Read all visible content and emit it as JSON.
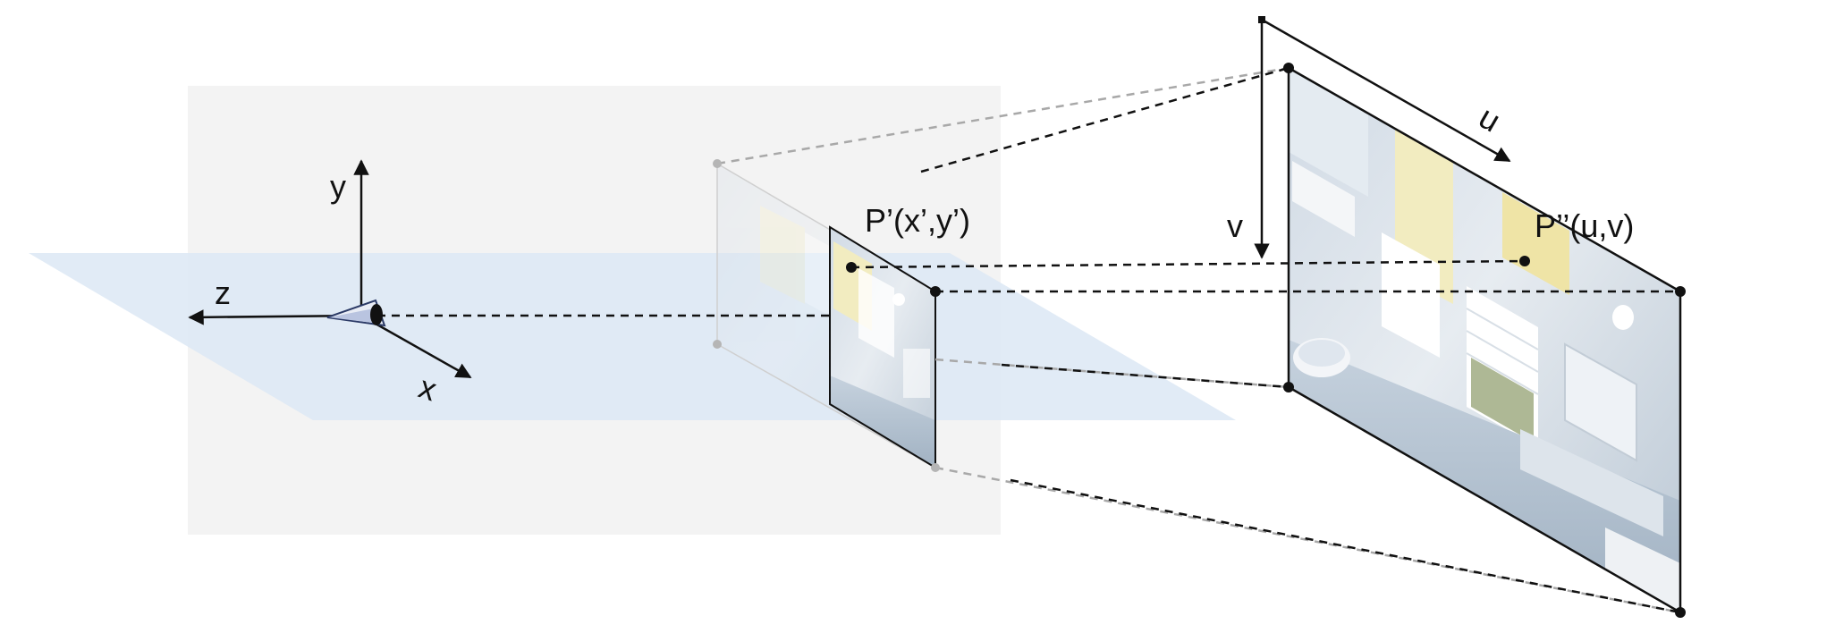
{
  "labels": {
    "axis_y": "y",
    "axis_z": "z",
    "axis_x": "x",
    "point_image_plane": "P’(x’,y’)",
    "point_image": "P’’(u,v)",
    "axis_u": "u",
    "axis_v": "v"
  },
  "colors": {
    "background_panel": "#f3f3f3",
    "ground_plane": "#dde9f5",
    "line": "#111111",
    "faded_line": "#a8a8a8",
    "scene_wall": "#dfe6ee",
    "scene_window": "#f2ecc0"
  },
  "icons": {
    "eye": "eye-icon"
  }
}
